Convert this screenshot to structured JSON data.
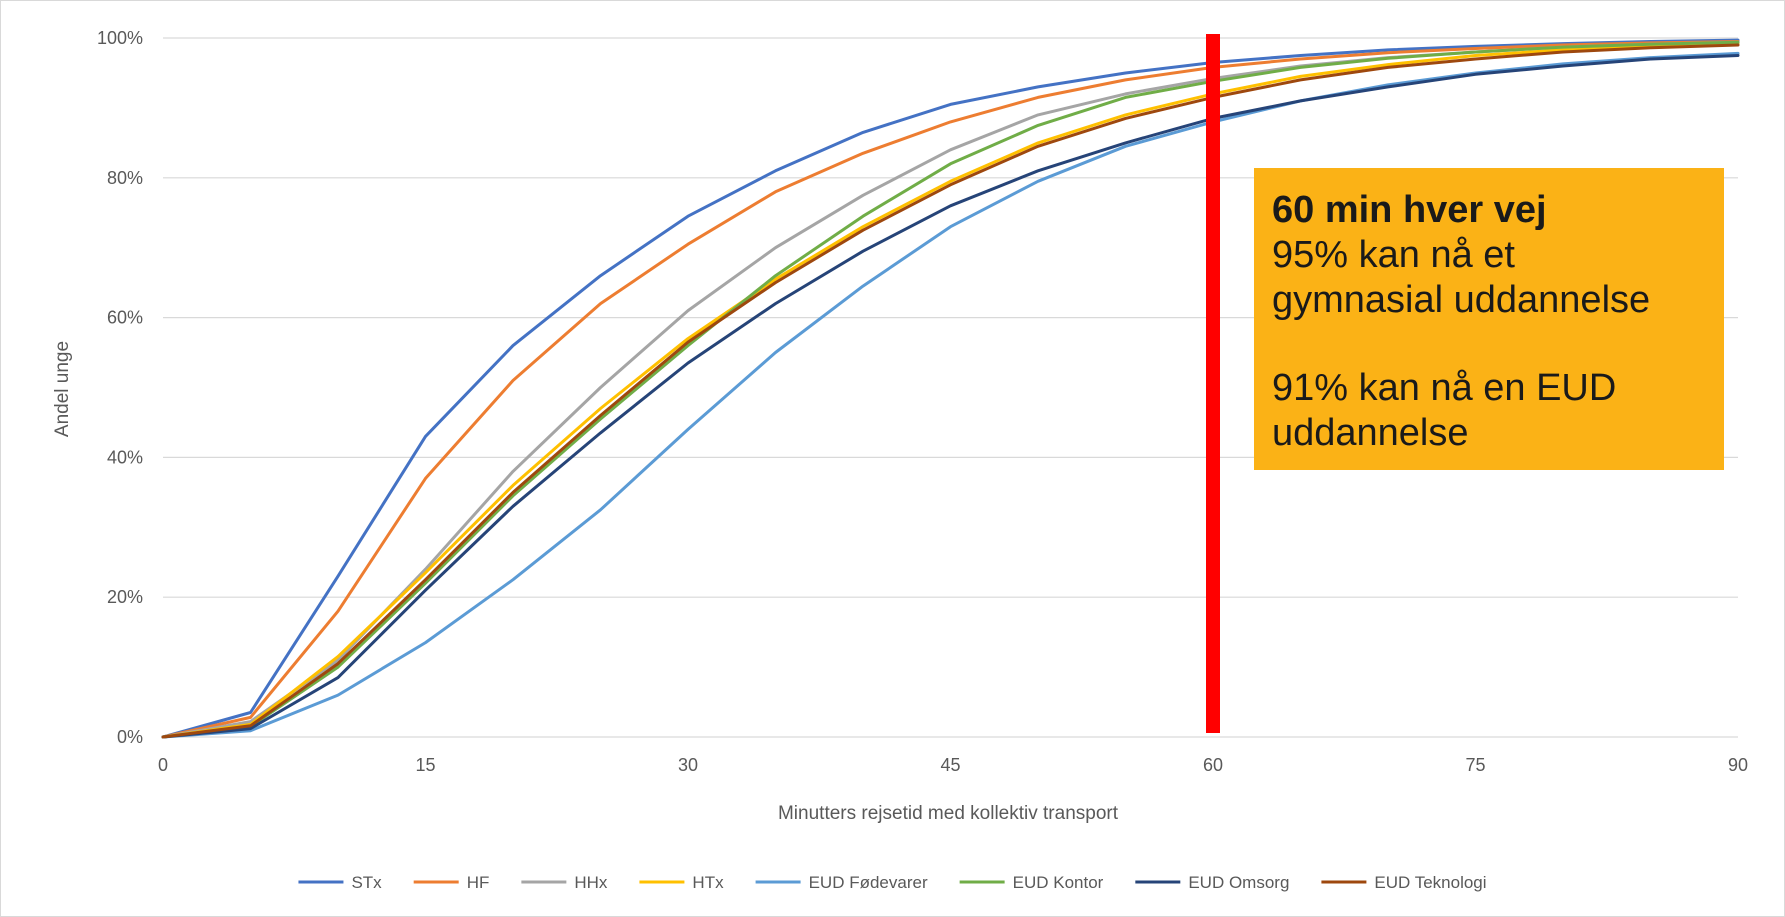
{
  "chart_data": {
    "type": "line",
    "title": "",
    "xlabel": "Minutters rejsetid med kollektiv transport",
    "ylabel": "Andel unge",
    "xlim": [
      0,
      90
    ],
    "ylim": [
      0,
      100
    ],
    "x_ticks": [
      "0",
      "15",
      "30",
      "45",
      "60",
      "75",
      "90"
    ],
    "y_ticks": [
      "0%",
      "20%",
      "40%",
      "60%",
      "80%",
      "100%"
    ],
    "grid": "horizontal",
    "legend_position": "bottom",
    "x": [
      0,
      5,
      10,
      15,
      20,
      25,
      30,
      35,
      40,
      45,
      50,
      55,
      60,
      65,
      70,
      75,
      80,
      85,
      90
    ],
    "series": [
      {
        "name": "STx",
        "color": "#4472c4",
        "values": [
          0,
          3.5,
          23,
          43,
          56,
          66,
          74.5,
          81,
          86.5,
          90.5,
          93,
          95,
          96.5,
          97.5,
          98.3,
          98.8,
          99.2,
          99.5,
          99.7
        ]
      },
      {
        "name": "HF",
        "color": "#ed7d31",
        "values": [
          0,
          2.8,
          18,
          37,
          51,
          62,
          70.5,
          78,
          83.5,
          88,
          91.5,
          94,
          95.8,
          97,
          97.9,
          98.5,
          99,
          99.3,
          99.5
        ]
      },
      {
        "name": "HHx",
        "color": "#a5a5a5",
        "values": [
          0,
          2.2,
          11,
          24,
          38,
          50,
          61,
          70,
          77.5,
          84,
          89,
          92,
          94.2,
          96,
          97.2,
          98,
          98.7,
          99.1,
          99.4
        ]
      },
      {
        "name": "HTx",
        "color": "#ffc000",
        "values": [
          0,
          1.8,
          11.5,
          23.5,
          36,
          47,
          57,
          65.5,
          73,
          79.5,
          85,
          89,
          92,
          94.5,
          96.2,
          97.5,
          98.3,
          98.8,
          99.2
        ]
      },
      {
        "name": "EUD Fødevarer",
        "color": "#5b9bd5",
        "values": [
          0,
          0.9,
          6,
          13.5,
          22.5,
          32.5,
          44,
          55,
          64.5,
          73,
          79.5,
          84.5,
          88,
          91,
          93.3,
          95,
          96.3,
          97.2,
          97.8
        ]
      },
      {
        "name": "EUD Kontor",
        "color": "#70ad47",
        "values": [
          0,
          1.5,
          10,
          22,
          34.5,
          45.5,
          56,
          66,
          74.5,
          82,
          87.5,
          91.5,
          93.8,
          95.8,
          97.1,
          98,
          98.7,
          99.1,
          99.4
        ]
      },
      {
        "name": "EUD Omsorg",
        "color": "#264478",
        "values": [
          0,
          1.2,
          8.5,
          21,
          33,
          43.5,
          53.5,
          62,
          69.5,
          76,
          81,
          85,
          88.5,
          91,
          93,
          94.8,
          96,
          97,
          97.5
        ]
      },
      {
        "name": "EUD Teknologi",
        "color": "#9e480e",
        "values": [
          0,
          1.6,
          10.5,
          22.5,
          35,
          46,
          56.5,
          65,
          72.5,
          79,
          84.5,
          88.5,
          91.5,
          94,
          95.8,
          97,
          98,
          98.6,
          99
        ]
      }
    ],
    "reference_line": {
      "x": 60,
      "color": "#ff0000"
    },
    "annotation": {
      "heading": "60 min hver vej",
      "line1": "95% kan nå et",
      "line2": "gymnasial uddannelse",
      "line3": "91% kan nå en EUD",
      "line4": "uddannelse",
      "background": "#fbb216"
    }
  }
}
